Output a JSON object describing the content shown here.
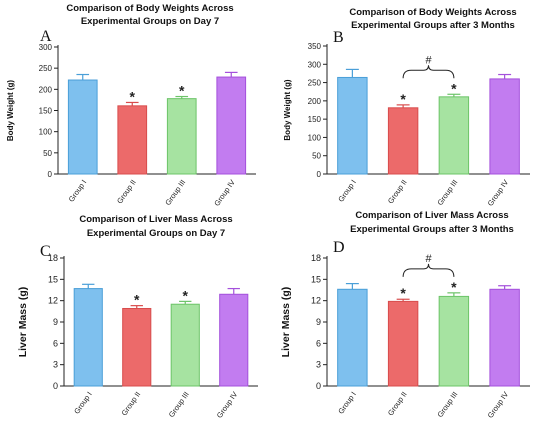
{
  "colors": {
    "group_fills": [
      "#7ec0ee",
      "#ec6a6a",
      "#a6e3a1",
      "#c27cf0"
    ],
    "group_strokes": [
      "#4a9fd8",
      "#d84c4c",
      "#6cc468",
      "#a450dc"
    ],
    "axis": "#222222"
  },
  "chart_data": [
    {
      "type": "bar",
      "panel_label": "A",
      "title_lines": [
        "Comparison of Body Weights Across",
        "Experimental Groups on Day 7"
      ],
      "ylabel": "Body Weight (g)",
      "categories": [
        "Group I",
        "Group II",
        "Group III",
        "Group IV"
      ],
      "values": [
        222,
        161,
        178,
        229
      ],
      "errors": [
        13,
        8,
        5,
        11
      ],
      "markers": [
        "",
        "*",
        "*",
        ""
      ],
      "ylim": [
        0,
        300
      ],
      "yticks": [
        0,
        50,
        100,
        150,
        200,
        250,
        300
      ],
      "bracket": null
    },
    {
      "type": "bar",
      "panel_label": "B",
      "title_lines": [
        "Comparison of Body Weights Across",
        "Experimental Groups after 3 Months"
      ],
      "ylabel": "Body Weight (g)",
      "categories": [
        "Group I",
        "Group II",
        "Group III",
        "Group IV"
      ],
      "values": [
        264,
        181,
        211,
        260
      ],
      "errors": [
        22,
        8,
        7,
        12
      ],
      "markers": [
        "",
        "*",
        "*",
        ""
      ],
      "ylim": [
        0,
        350
      ],
      "yticks": [
        0,
        50,
        100,
        150,
        200,
        250,
        300,
        350
      ],
      "bracket": {
        "from": 1,
        "to": 2,
        "label": "#"
      }
    },
    {
      "type": "bar",
      "panel_label": "C",
      "title_lines": [
        "Comparison of Liver Mass Across",
        "Experimental Groups on Day 7"
      ],
      "ylabel": "Liver Mass (g)",
      "categories": [
        "Group I",
        "Group II",
        "Group III",
        "Group IV"
      ],
      "values": [
        13.7,
        10.9,
        11.5,
        12.9
      ],
      "errors": [
        0.6,
        0.4,
        0.4,
        0.8
      ],
      "markers": [
        "",
        "*",
        "*",
        ""
      ],
      "ylim": [
        0,
        18
      ],
      "yticks": [
        0,
        3,
        6,
        9,
        12,
        15,
        18
      ],
      "bracket": null
    },
    {
      "type": "bar",
      "panel_label": "D",
      "title_lines": [
        "Comparison of Liver Mass Across",
        "Experimental Groups after 3 Months"
      ],
      "ylabel": "Liver Mass (g)",
      "categories": [
        "Group I",
        "Group II",
        "Group III",
        "Group IV"
      ],
      "values": [
        13.6,
        11.9,
        12.6,
        13.6
      ],
      "errors": [
        0.8,
        0.3,
        0.5,
        0.5
      ],
      "markers": [
        "",
        "*",
        "*",
        ""
      ],
      "ylim": [
        0,
        18
      ],
      "yticks": [
        0,
        3,
        6,
        9,
        12,
        15,
        18
      ],
      "bracket": {
        "from": 1,
        "to": 2,
        "label": "#"
      }
    }
  ]
}
